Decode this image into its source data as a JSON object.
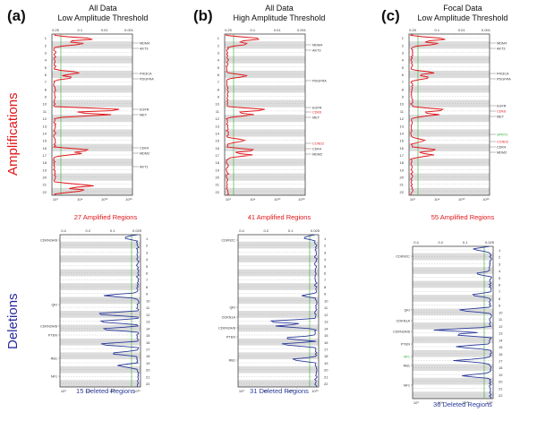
{
  "panels": [
    {
      "letter": "(a)",
      "title_line1": "All Data",
      "title_line2": "Low Amplitude Threshold",
      "amp_caption": "27 Amplified Regions",
      "del_caption": "15 Deleted Regions",
      "amp_genes": [
        {
          "name": "MDM4",
          "color": "#333333"
        },
        {
          "name": "AKT3",
          "color": "#333333"
        },
        {
          "name": "PIK3CA",
          "color": "#333333"
        },
        {
          "name": "PDGFRA",
          "color": "#333333"
        },
        {
          "name": "EGFR",
          "color": "#333333"
        },
        {
          "name": "MET",
          "color": "#333333"
        },
        {
          "name": "CDK4",
          "color": "#333333"
        },
        {
          "name": "MDM2",
          "color": "#333333"
        },
        {
          "name": "AKT1",
          "color": "#333333"
        }
      ],
      "del_genes": [
        {
          "name": "CDKN2A/B",
          "color": "#333333"
        },
        {
          "name": "QKI",
          "color": "#333333"
        },
        {
          "name": "CDKN2A/B",
          "color": "#333333"
        },
        {
          "name": "PTEN",
          "color": "#333333"
        },
        {
          "name": "RB1",
          "color": "#333333"
        },
        {
          "name": "NF1",
          "color": "#333333"
        }
      ]
    },
    {
      "letter": "(b)",
      "title_line1": "All Data",
      "title_line2": "High Amplitude Threshold",
      "amp_caption": "41 Amplified Regions",
      "del_caption": "31 Deleted Regions",
      "amp_genes": [
        {
          "name": "MDM4",
          "color": "#333333"
        },
        {
          "name": "AKT3",
          "color": "#333333"
        },
        {
          "name": "PDGFRA",
          "color": "#333333"
        },
        {
          "name": "EGFR",
          "color": "#333333"
        },
        {
          "name": "CDK6",
          "color": "#e0161a"
        },
        {
          "name": "MET",
          "color": "#333333"
        },
        {
          "name": "CCND2",
          "color": "#e0161a"
        },
        {
          "name": "CDK4",
          "color": "#333333"
        },
        {
          "name": "MDM2",
          "color": "#333333"
        }
      ],
      "del_genes": [
        {
          "name": "CDKN2C",
          "color": "#333333"
        },
        {
          "name": "QKI",
          "color": "#333333"
        },
        {
          "name": "CDKN1A",
          "color": "#333333"
        },
        {
          "name": "CDKN2A/B",
          "color": "#333333"
        },
        {
          "name": "PTEN",
          "color": "#333333"
        },
        {
          "name": "RB1",
          "color": "#333333"
        }
      ]
    },
    {
      "letter": "(c)",
      "title_line1": "Focal Data",
      "title_line2": "Low Amplitude Threshold",
      "amp_caption": "55 Amplified Regions",
      "del_caption": "36 Deleted Regions",
      "amp_genes": [
        {
          "name": "MDM4",
          "color": "#333333"
        },
        {
          "name": "AKT3",
          "color": "#333333"
        },
        {
          "name": "PIK3CA",
          "color": "#333333"
        },
        {
          "name": "PDGFRA",
          "color": "#333333"
        },
        {
          "name": "EGFR",
          "color": "#333333"
        },
        {
          "name": "CDK6",
          "color": "#e0161a"
        },
        {
          "name": "MET",
          "color": "#333333"
        },
        {
          "name": "SPRY2",
          "color": "#2fae2f"
        },
        {
          "name": "CCND2",
          "color": "#e0161a"
        },
        {
          "name": "CDK4",
          "color": "#333333"
        },
        {
          "name": "MDM2",
          "color": "#333333"
        }
      ],
      "del_genes": [
        {
          "name": "CDKN2C",
          "color": "#333333"
        },
        {
          "name": "QKI",
          "color": "#333333"
        },
        {
          "name": "CDKN1A",
          "color": "#333333"
        },
        {
          "name": "CDKN2A/B",
          "color": "#333333"
        },
        {
          "name": "PTEN",
          "color": "#333333"
        },
        {
          "name": "NF1",
          "color": "#2fae2f"
        },
        {
          "name": "RB1",
          "color": "#333333"
        },
        {
          "name": "NF1",
          "color": "#333333"
        }
      ]
    }
  ],
  "row_labels": {
    "amplifications": "Amplifications",
    "deletions": "Deletions"
  },
  "q_ticks_top": [
    "0.25",
    "0.1",
    "0.01",
    "0.001"
  ],
  "q_ticks_bottom": [
    "10⁹",
    "10⁴",
    "10¹⁰",
    "10¹⁶"
  ],
  "del_ticks_top": [
    "0.4",
    "0.2",
    "0.1",
    "0.025"
  ],
  "chromosomes": [
    "1",
    "2",
    "3",
    "4",
    "5",
    "6",
    "7",
    "8",
    "9",
    "10",
    "11",
    "12",
    "13",
    "14",
    "15",
    "16",
    "17",
    "18",
    "19",
    "20",
    "21",
    "22"
  ],
  "colors": {
    "amp": "#e0161a",
    "del": "#2a3a9a",
    "band": "#dcdcdc",
    "threshold": "#2fae2f"
  }
}
